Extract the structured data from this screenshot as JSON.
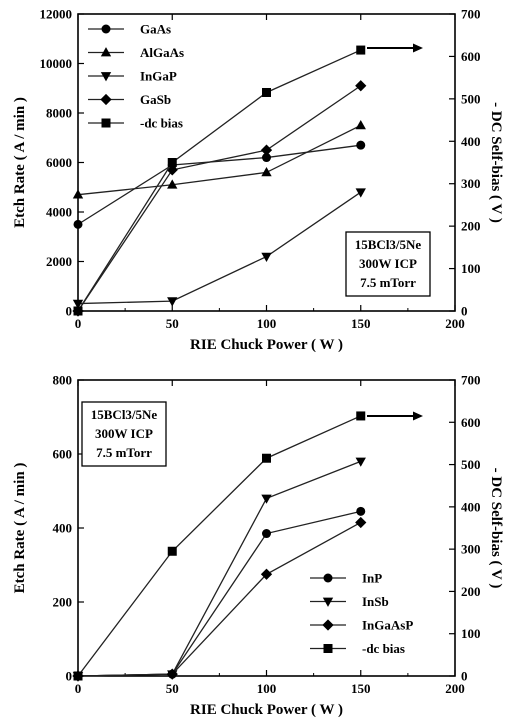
{
  "figure": {
    "panels": 2
  },
  "chart_data": [
    {
      "type": "line",
      "xlabel": "RIE Chuck Power ( W )",
      "ylabel_left": "Etch Rate ( A / min )",
      "ylabel_right": "- DC  Self-bias ( V )",
      "xlim": [
        0,
        200
      ],
      "ylim_left": [
        0,
        12000
      ],
      "ylim_right": [
        0,
        700
      ],
      "x_ticks": [
        "0",
        "50",
        "100",
        "150",
        "200"
      ],
      "y_ticks_left": [
        "0",
        "2000",
        "4000",
        "6000",
        "8000",
        "10000",
        "12000"
      ],
      "y_ticks_right": [
        "0",
        "100",
        "200",
        "300",
        "400",
        "500",
        "600",
        "700"
      ],
      "legend_position": "top-left",
      "annotation": [
        "15BCl3/5Ne",
        "300W ICP",
        "7.5 mTorr"
      ],
      "series": [
        {
          "name": "GaAs",
          "marker": "circle",
          "axis": "left",
          "x": [
            0,
            50,
            100,
            150
          ],
          "values": [
            3500,
            5900,
            6200,
            6700
          ]
        },
        {
          "name": "AlGaAs",
          "marker": "triangle-up",
          "axis": "left",
          "x": [
            0,
            50,
            100,
            150
          ],
          "values": [
            4700,
            5100,
            5600,
            7500
          ]
        },
        {
          "name": "InGaP",
          "marker": "triangle-down",
          "axis": "left",
          "x": [
            0,
            50,
            100,
            150
          ],
          "values": [
            300,
            400,
            2200,
            4800
          ]
        },
        {
          "name": "GaSb",
          "marker": "diamond",
          "axis": "left",
          "x": [
            0,
            50,
            100,
            150
          ],
          "values": [
            0,
            5700,
            6500,
            9100
          ]
        },
        {
          "name": "-dc bias",
          "marker": "square",
          "axis": "right",
          "x": [
            0,
            50,
            100,
            150
          ],
          "values": [
            0,
            350,
            515,
            615
          ]
        }
      ]
    },
    {
      "type": "line",
      "xlabel": "RIE Chuck Power ( W )",
      "ylabel_left": "Etch Rate ( A / min )",
      "ylabel_right": "- DC  Self-bias ( V )",
      "xlim": [
        0,
        200
      ],
      "ylim_left": [
        0,
        800
      ],
      "ylim_right": [
        0,
        700
      ],
      "x_ticks": [
        "0",
        "50",
        "100",
        "150",
        "200"
      ],
      "y_ticks_left": [
        "0",
        "200",
        "400",
        "600",
        "800"
      ],
      "y_ticks_right": [
        "0",
        "100",
        "200",
        "300",
        "400",
        "500",
        "600",
        "700"
      ],
      "legend_position": "bottom-right",
      "annotation": [
        "15BCl3/5Ne",
        "300W ICP",
        "7.5 mTorr"
      ],
      "series": [
        {
          "name": "InP",
          "marker": "circle",
          "axis": "left",
          "x": [
            0,
            50,
            100,
            150
          ],
          "values": [
            0,
            5,
            385,
            445
          ]
        },
        {
          "name": "InSb",
          "marker": "triangle-down",
          "axis": "left",
          "x": [
            0,
            50,
            100,
            150
          ],
          "values": [
            0,
            5,
            480,
            580
          ]
        },
        {
          "name": "InGaAsP",
          "marker": "diamond",
          "axis": "left",
          "x": [
            0,
            50,
            100,
            150
          ],
          "values": [
            0,
            5,
            275,
            415
          ]
        },
        {
          "name": "-dc bias",
          "marker": "square",
          "axis": "right",
          "x": [
            0,
            50,
            100,
            150
          ],
          "values": [
            0,
            295,
            515,
            615
          ]
        }
      ]
    }
  ]
}
